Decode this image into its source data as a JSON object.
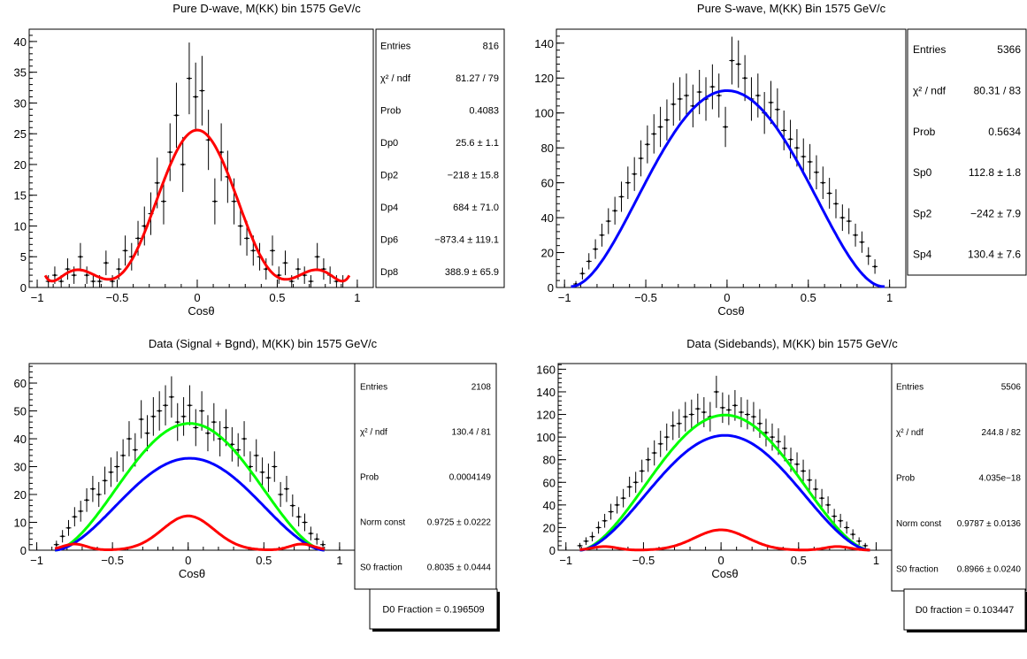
{
  "chart_data": [
    {
      "type": "scatter",
      "title": "Pure D-wave, M(KK) bin 1575 GeV/c",
      "xlabel": "Cosθ",
      "ylabel": "",
      "xlim": [
        -1.05,
        1.1
      ],
      "ylim": [
        0,
        42
      ],
      "xticks": [
        -1,
        -0.5,
        0,
        0.5,
        1
      ],
      "xtick_labels": [
        "−1",
        "−0.5",
        "0",
        "0.5",
        "1"
      ],
      "yticks": [
        0,
        5,
        10,
        15,
        20,
        25,
        30,
        35,
        40
      ],
      "ytick_labels": [
        "0",
        "5",
        "10",
        "15",
        "20",
        "25",
        "30",
        "35",
        "40"
      ],
      "grid": false,
      "series": [
        {
          "kind": "points_with_errors",
          "color": "#000000",
          "x": [
            -0.93,
            -0.89,
            -0.85,
            -0.81,
            -0.77,
            -0.73,
            -0.69,
            -0.65,
            -0.61,
            -0.57,
            -0.53,
            -0.49,
            -0.45,
            -0.41,
            -0.37,
            -0.33,
            -0.29,
            -0.25,
            -0.21,
            -0.17,
            -0.13,
            -0.09,
            -0.05,
            -0.01,
            0.03,
            0.07,
            0.11,
            0.15,
            0.19,
            0.23,
            0.27,
            0.31,
            0.35,
            0.39,
            0.43,
            0.47,
            0.51,
            0.55,
            0.59,
            0.63,
            0.67,
            0.71,
            0.75,
            0.79,
            0.83,
            0.87,
            0.91
          ],
          "y": [
            1,
            2,
            1,
            3,
            2,
            5,
            2,
            1,
            1,
            4,
            1,
            3,
            6,
            5,
            8,
            10,
            12,
            17,
            14,
            22,
            28,
            20,
            34,
            31,
            32,
            24,
            14,
            22,
            18,
            14,
            10,
            8,
            6,
            5,
            3,
            6,
            2,
            4,
            1,
            3,
            2,
            1,
            5,
            3,
            2,
            1,
            1
          ]
        },
        {
          "kind": "curve",
          "color": "#ff0000",
          "fit": "Dp0 + Dp2 x^2 + Dp4 x^4 + Dp6 x^6 + Dp8 x^8",
          "params": [
            25.6,
            -218,
            684,
            -873.4,
            388.9
          ],
          "xrange": [
            -0.95,
            0.95
          ]
        }
      ],
      "stats": [
        {
          "label": "Entries",
          "value": "816"
        },
        {
          "label": "χ² / ndf",
          "value": "81.27 / 79"
        },
        {
          "label": "Prob",
          "value": "0.4083"
        },
        {
          "label": "Dp0",
          "value": "25.6 ± 1.1"
        },
        {
          "label": "Dp2",
          "value": "−218 ± 15.8"
        },
        {
          "label": "Dp4",
          "value": "684 ± 71.0"
        },
        {
          "label": "Dp6",
          "value": "−873.4 ± 119.1"
        },
        {
          "label": "Dp8",
          "value": "388.9 ± 65.9"
        }
      ],
      "extra_box": null
    },
    {
      "type": "scatter",
      "title": "Pure S-wave, M(KK) Bin 1575 GeV/c",
      "xlabel": "Cosθ",
      "ylabel": "",
      "xlim": [
        -1.05,
        1.1
      ],
      "ylim": [
        0,
        148
      ],
      "xticks": [
        -1,
        -0.5,
        0,
        0.5,
        1
      ],
      "xtick_labels": [
        "−1",
        "−0.5",
        "0",
        "0.5",
        "1"
      ],
      "yticks": [
        0,
        20,
        40,
        60,
        80,
        100,
        120,
        140
      ],
      "ytick_labels": [
        "0",
        "20",
        "40",
        "60",
        "80",
        "100",
        "120",
        "140"
      ],
      "grid": false,
      "series": [
        {
          "kind": "points_with_errors",
          "color": "#000000",
          "x": [
            -0.93,
            -0.89,
            -0.85,
            -0.81,
            -0.77,
            -0.73,
            -0.69,
            -0.65,
            -0.61,
            -0.57,
            -0.53,
            -0.49,
            -0.45,
            -0.41,
            -0.37,
            -0.33,
            -0.29,
            -0.25,
            -0.21,
            -0.17,
            -0.13,
            -0.09,
            -0.05,
            -0.01,
            0.03,
            0.07,
            0.11,
            0.15,
            0.19,
            0.23,
            0.27,
            0.31,
            0.35,
            0.39,
            0.43,
            0.47,
            0.51,
            0.55,
            0.59,
            0.63,
            0.67,
            0.71,
            0.75,
            0.79,
            0.83,
            0.87,
            0.91
          ],
          "y": [
            2,
            8,
            15,
            22,
            30,
            38,
            44,
            52,
            60,
            65,
            74,
            82,
            88,
            92,
            96,
            105,
            108,
            110,
            104,
            112,
            108,
            115,
            110,
            92,
            130,
            128,
            120,
            108,
            110,
            100,
            106,
            102,
            90,
            85,
            80,
            75,
            72,
            66,
            60,
            54,
            48,
            40,
            38,
            30,
            26,
            18,
            12
          ]
        },
        {
          "kind": "curve",
          "color": "#0000ff",
          "fit": "Sp0 + Sp2 x^2 + Sp4 x^4",
          "params": [
            112.8,
            -242,
            130.4
          ],
          "xrange": [
            -0.96,
            0.97
          ]
        }
      ],
      "stats": [
        {
          "label": "Entries",
          "value": "5366"
        },
        {
          "label": "χ² / ndf",
          "value": "80.31 / 83"
        },
        {
          "label": "Prob",
          "value": "0.5634"
        },
        {
          "label": "Sp0",
          "value": "112.8 ± 1.8"
        },
        {
          "label": "Sp2",
          "value": "−242 ± 7.9"
        },
        {
          "label": "Sp4",
          "value": "130.4 ± 7.6"
        }
      ],
      "extra_box": null
    },
    {
      "type": "scatter",
      "title": "Data (Signal + Bgnd), M(KK) bin 1575 GeV/c",
      "xlabel": "Cosθ",
      "ylabel": "",
      "xlim": [
        -1.05,
        1.1
      ],
      "ylim": [
        0,
        67
      ],
      "xticks": [
        -1,
        -0.5,
        0,
        0.5,
        1
      ],
      "xtick_labels": [
        "−1",
        "−0.5",
        "0",
        "0.5",
        "1"
      ],
      "yticks": [
        0,
        10,
        20,
        30,
        40,
        50,
        60
      ],
      "ytick_labels": [
        "0",
        "10",
        "20",
        "30",
        "40",
        "50",
        "60"
      ],
      "grid": false,
      "series": [
        {
          "kind": "points_with_errors",
          "color": "#000000",
          "x": [
            -0.87,
            -0.83,
            -0.79,
            -0.75,
            -0.71,
            -0.67,
            -0.63,
            -0.59,
            -0.55,
            -0.51,
            -0.47,
            -0.43,
            -0.39,
            -0.35,
            -0.31,
            -0.27,
            -0.23,
            -0.19,
            -0.15,
            -0.11,
            -0.07,
            -0.03,
            0.01,
            0.05,
            0.09,
            0.13,
            0.17,
            0.21,
            0.25,
            0.29,
            0.33,
            0.37,
            0.41,
            0.45,
            0.49,
            0.53,
            0.57,
            0.61,
            0.65,
            0.69,
            0.73,
            0.77,
            0.81,
            0.85,
            0.89
          ],
          "y": [
            2,
            5,
            8,
            12,
            14,
            18,
            22,
            20,
            25,
            28,
            30,
            34,
            40,
            36,
            47,
            42,
            48,
            50,
            52,
            55,
            46,
            48,
            52,
            44,
            50,
            42,
            46,
            40,
            44,
            38,
            36,
            40,
            30,
            34,
            28,
            26,
            30,
            20,
            22,
            16,
            12,
            10,
            6,
            4,
            2
          ]
        },
        {
          "kind": "curve",
          "color": "#00ff00",
          "fit": "total",
          "peak": 45.5,
          "xrange": [
            -0.88,
            0.9
          ]
        },
        {
          "kind": "curve",
          "color": "#0000ff",
          "fit": "S-wave component",
          "peak": 33.0,
          "xrange": [
            -0.88,
            0.9
          ]
        },
        {
          "kind": "curve",
          "color": "#ff0000",
          "fit": "D-wave component",
          "peak": 12.3,
          "xrange": [
            -0.88,
            0.9
          ]
        }
      ],
      "stats": [
        {
          "label": "Entries",
          "value": "2108"
        },
        {
          "label": "χ² / ndf",
          "value": "130.4 / 81"
        },
        {
          "label": "Prob",
          "value": "0.0004149"
        },
        {
          "label": "Norm const",
          "value": "0.9725 ± 0.0222"
        },
        {
          "label": "S0 fraction",
          "value": "0.8035 ± 0.0444"
        }
      ],
      "extra_box": "D0 Fraction = 0.196509"
    },
    {
      "type": "scatter",
      "title": "Data (Sidebands), M(KK) bin 1575 GeV/c",
      "xlabel": "Cosθ",
      "ylabel": "",
      "xlim": [
        -1.05,
        1.1
      ],
      "ylim": [
        0,
        165
      ],
      "xticks": [
        -1,
        -0.5,
        0,
        0.5,
        1
      ],
      "xtick_labels": [
        "−1",
        "−0.5",
        "0",
        "0.5",
        "1"
      ],
      "yticks": [
        0,
        20,
        40,
        60,
        80,
        100,
        120,
        140,
        160
      ],
      "ytick_labels": [
        "0",
        "20",
        "40",
        "60",
        "80",
        "100",
        "120",
        "140",
        "160"
      ],
      "grid": false,
      "series": [
        {
          "kind": "points_with_errors",
          "color": "#000000",
          "x": [
            -0.91,
            -0.87,
            -0.83,
            -0.79,
            -0.75,
            -0.71,
            -0.67,
            -0.63,
            -0.59,
            -0.55,
            -0.51,
            -0.47,
            -0.43,
            -0.39,
            -0.35,
            -0.31,
            -0.27,
            -0.23,
            -0.19,
            -0.15,
            -0.11,
            -0.07,
            -0.03,
            0.01,
            0.05,
            0.09,
            0.13,
            0.17,
            0.21,
            0.25,
            0.29,
            0.33,
            0.37,
            0.41,
            0.45,
            0.49,
            0.53,
            0.57,
            0.61,
            0.65,
            0.69,
            0.73,
            0.77,
            0.81,
            0.85,
            0.89,
            0.93
          ],
          "y": [
            4,
            8,
            12,
            20,
            26,
            34,
            40,
            46,
            56,
            60,
            70,
            80,
            86,
            94,
            100,
            110,
            112,
            118,
            120,
            125,
            122,
            118,
            140,
            126,
            124,
            128,
            122,
            120,
            118,
            112,
            104,
            100,
            96,
            90,
            80,
            76,
            70,
            62,
            54,
            46,
            40,
            30,
            26,
            20,
            14,
            8,
            4
          ]
        },
        {
          "kind": "curve",
          "color": "#00ff00",
          "fit": "total",
          "peak": 119.5,
          "xrange": [
            -0.91,
            0.96
          ]
        },
        {
          "kind": "curve",
          "color": "#0000ff",
          "fit": "S-wave component",
          "peak": 101.5,
          "xrange": [
            -0.91,
            0.96
          ]
        },
        {
          "kind": "curve",
          "color": "#ff0000",
          "fit": "D-wave component",
          "peak": 18.0,
          "xrange": [
            -0.91,
            0.96
          ]
        }
      ],
      "stats": [
        {
          "label": "Entries",
          "value": "5506"
        },
        {
          "label": "χ² / ndf",
          "value": "244.8 / 82"
        },
        {
          "label": "Prob",
          "value": "4.035e−18"
        },
        {
          "label": "Norm const",
          "value": "0.9787 ± 0.0136"
        },
        {
          "label": "S0 fraction",
          "value": "0.8966 ± 0.0240"
        }
      ],
      "extra_box": "D0 fraction = 0.103447"
    }
  ]
}
